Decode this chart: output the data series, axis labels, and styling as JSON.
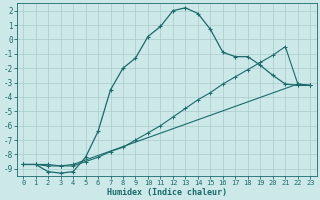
{
  "title": "",
  "xlabel": "Humidex (Indice chaleur)",
  "bg_color": "#cce8e8",
  "grid_color": "#aacccc",
  "line_color": "#1a6b6b",
  "xlim": [
    -0.5,
    23.5
  ],
  "ylim": [
    -9.5,
    2.5
  ],
  "xticks": [
    0,
    1,
    2,
    3,
    4,
    5,
    6,
    7,
    8,
    9,
    10,
    11,
    12,
    13,
    14,
    15,
    16,
    17,
    18,
    19,
    20,
    21,
    22,
    23
  ],
  "yticks": [
    2,
    1,
    0,
    -1,
    -2,
    -3,
    -4,
    -5,
    -6,
    -7,
    -8,
    -9
  ],
  "curve1_x": [
    0,
    1,
    2,
    3,
    4,
    5,
    6,
    7,
    8,
    9,
    10,
    11,
    12,
    13,
    14,
    15,
    16,
    17,
    18,
    19,
    20,
    21,
    22,
    23
  ],
  "curve1_y": [
    -8.7,
    -8.7,
    -9.2,
    -9.3,
    -9.2,
    -8.2,
    -6.4,
    -3.5,
    -2.0,
    -1.3,
    0.2,
    0.9,
    2.0,
    2.2,
    1.8,
    0.7,
    -0.9,
    -1.2,
    -1.2,
    -1.8,
    -2.5,
    -3.1,
    -3.2,
    -3.2
  ],
  "curve2_x": [
    0,
    1,
    2,
    3,
    4,
    22,
    23
  ],
  "curve2_y": [
    -8.7,
    -8.7,
    -8.8,
    -8.8,
    -8.7,
    -3.1,
    -3.2
  ],
  "curve3_x": [
    0,
    1,
    2,
    3,
    4,
    5,
    6,
    7,
    8,
    9,
    10,
    11,
    12,
    13,
    14,
    15,
    16,
    17,
    18,
    19,
    20,
    21,
    22,
    23
  ],
  "curve3_y": [
    -8.7,
    -8.7,
    -8.7,
    -8.8,
    -8.8,
    -8.5,
    -8.2,
    -7.8,
    -7.5,
    -7.0,
    -6.5,
    -6.0,
    -5.4,
    -4.8,
    -4.2,
    -3.7,
    -3.1,
    -2.6,
    -2.1,
    -1.6,
    -1.1,
    -0.5,
    -3.1,
    -3.2
  ]
}
